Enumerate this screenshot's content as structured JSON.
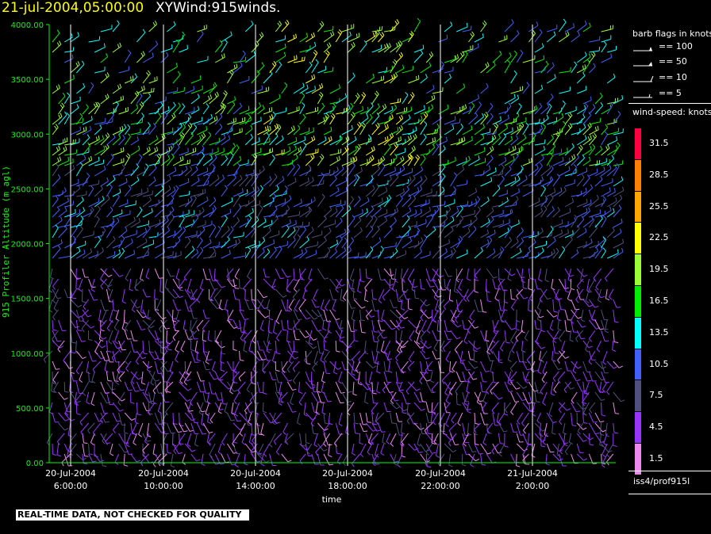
{
  "header": {
    "timestamp": "21-jul-2004,05:00:00",
    "title": "XYWind:915winds."
  },
  "chart_data": {
    "type": "wind-barb",
    "xlabel": "time",
    "ylabel": "915 Profiler Altitude (m agl)",
    "y_ticks": [
      "4000.00",
      "3500.00",
      "3000.00",
      "2500.00",
      "2000.00",
      "1500.00",
      "1000.00",
      "500.00",
      "0.00"
    ],
    "ylim": [
      0,
      4000
    ],
    "x_ticks": [
      {
        "date": "20-Jul-2004",
        "time": "6:00:00"
      },
      {
        "date": "20-Jul-2004",
        "time": "10:00:00"
      },
      {
        "date": "20-Jul-2004",
        "time": "14:00:00"
      },
      {
        "date": "20-Jul-2004",
        "time": "18:00:00"
      },
      {
        "date": "20-Jul-2004",
        "time": "22:00:00"
      },
      {
        "date": "21-Jul-2004",
        "time": "2:00:00"
      }
    ],
    "grid": "vertical lines at time ticks",
    "colors": {
      "axis": "#00ff00",
      "ytick_text": "#00ff00",
      "grid": "#ffffff"
    }
  },
  "legend": {
    "barb_title": "barb flags in knots",
    "barb_entries": [
      "== 100",
      "== 50",
      "== 10",
      "== 5"
    ],
    "speed_title": "wind-speed: knots",
    "speed_bins": [
      {
        "label": "31.5",
        "color": "#ff0040"
      },
      {
        "label": "28.5",
        "color": "#ff8000"
      },
      {
        "label": "25.5",
        "color": "#ffa500"
      },
      {
        "label": "22.5",
        "color": "#ffff00"
      },
      {
        "label": "19.5",
        "color": "#99ff33"
      },
      {
        "label": "16.5",
        "color": "#00ee00"
      },
      {
        "label": "13.5",
        "color": "#00ffff"
      },
      {
        "label": "10.5",
        "color": "#4060ff"
      },
      {
        "label": "7.5",
        "color": "#505080"
      },
      {
        "label": "4.5",
        "color": "#9933ff"
      },
      {
        "label": "1.5",
        "color": "#ee88ee"
      }
    ],
    "source": "iss4/prof915l"
  },
  "footer": {
    "qc_note": "REAL-TIME DATA, NOT CHECKED FOR QUALITY"
  }
}
